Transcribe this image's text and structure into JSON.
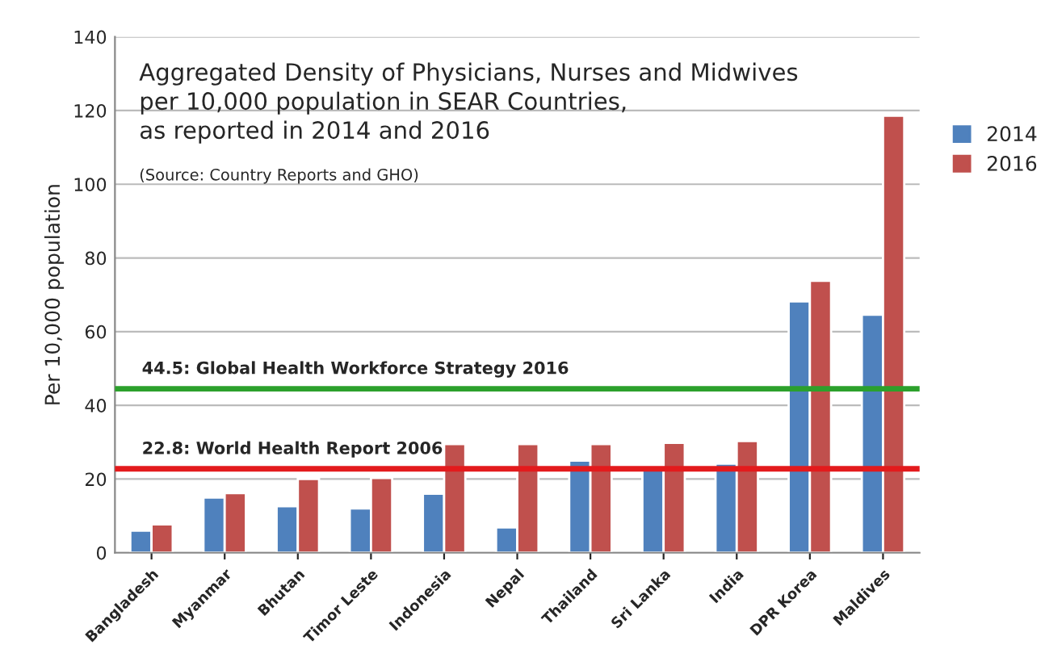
{
  "chart_data": {
    "type": "bar",
    "title": "Aggregated Density of Physicians, Nurses and Midwives\nper 10,000 population in SEAR Countries,\nas reported in 2014 and 2016",
    "annotations": [
      "(Source: Country Reports and GHO)"
    ],
    "ylabel": "Per 10,000 population",
    "categories": [
      "Bangladesh",
      "Myanmar",
      "Bhutan",
      "Timor Leste",
      "Indonesia",
      "Nepal",
      "Thailand",
      "Sri Lanka",
      "India",
      "DPR Korea",
      "Maldives"
    ],
    "series": [
      {
        "name": "2014",
        "color": "#4f81bd",
        "values": [
          6,
          15,
          12.6,
          12,
          16,
          6.9,
          25,
          23,
          24.2,
          68.2,
          64.6
        ]
      },
      {
        "name": "2016",
        "color": "#c0504d",
        "values": [
          7.7,
          16.2,
          20,
          20.3,
          29.5,
          29.5,
          29.5,
          29.8,
          30.3,
          73.8,
          118.6
        ]
      }
    ],
    "ylim": [
      0,
      140
    ],
    "yticks": [
      0,
      20,
      40,
      60,
      80,
      100,
      120,
      140
    ],
    "ref_lines": [
      {
        "axis": "y",
        "value": 44.5,
        "label": "44.5: Global Health Workforce Strategy 2016",
        "color": "#2ca02c"
      },
      {
        "axis": "y",
        "value": 22.8,
        "label": "22.8: World Health Report 2006",
        "color": "#e31a1c"
      }
    ],
    "grid": "y",
    "legend": "right"
  }
}
